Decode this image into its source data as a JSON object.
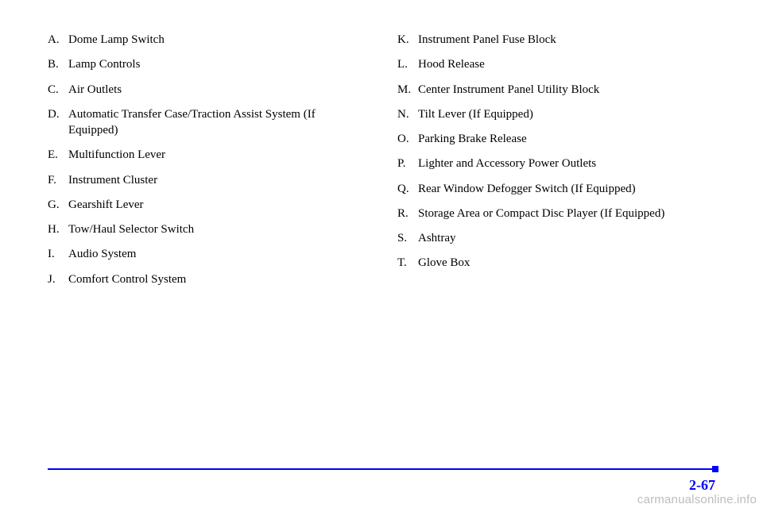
{
  "left_list": [
    {
      "letter": "A.",
      "text": "Dome Lamp Switch"
    },
    {
      "letter": "B.",
      "text": "Lamp Controls"
    },
    {
      "letter": "C.",
      "text": "Air Outlets"
    },
    {
      "letter": "D.",
      "text": "Automatic Transfer Case/Traction Assist System (If Equipped)"
    },
    {
      "letter": "E.",
      "text": "Multifunction Lever"
    },
    {
      "letter": "F.",
      "text": "Instrument Cluster"
    },
    {
      "letter": "G.",
      "text": "Gearshift Lever"
    },
    {
      "letter": "H.",
      "text": "Tow/Haul Selector Switch"
    },
    {
      "letter": "I.",
      "text": "Audio System"
    },
    {
      "letter": "J.",
      "text": "Comfort Control System"
    }
  ],
  "right_list": [
    {
      "letter": "K.",
      "text": "Instrument Panel Fuse Block"
    },
    {
      "letter": "L.",
      "text": "Hood Release"
    },
    {
      "letter": "M.",
      "text": "Center Instrument Panel Utility Block"
    },
    {
      "letter": "N.",
      "text": "Tilt Lever (If Equipped)"
    },
    {
      "letter": "O.",
      "text": "Parking Brake Release"
    },
    {
      "letter": "P.",
      "text": "Lighter and Accessory Power Outlets"
    },
    {
      "letter": "Q.",
      "text": "Rear Window Defogger Switch (If Equipped)"
    },
    {
      "letter": "R.",
      "text": "Storage Area or Compact Disc Player (If Equipped)"
    },
    {
      "letter": "S.",
      "text": "Ashtray"
    },
    {
      "letter": "T.",
      "text": "Glove Box"
    }
  ],
  "page_number": "2-67",
  "watermark": "carmanualsonline.info",
  "colors": {
    "accent": "#0000ff",
    "text": "#000000",
    "watermark": "#bdbdbd",
    "background": "#ffffff"
  }
}
